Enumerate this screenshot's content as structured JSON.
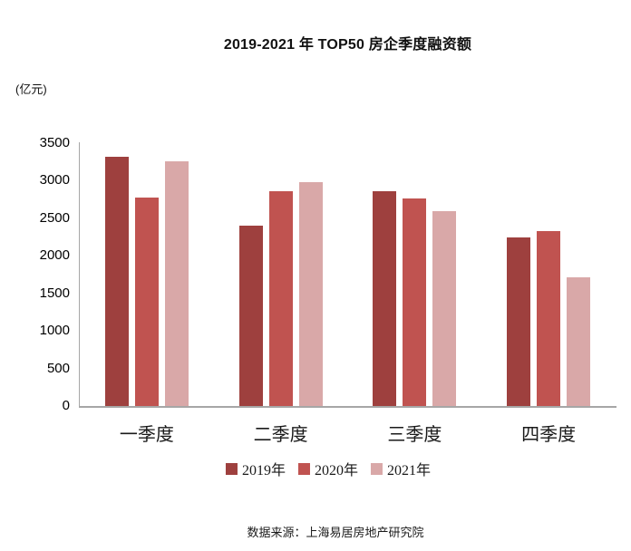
{
  "header": {
    "title": "2019-2021 年 TOP50 房企季度融资额",
    "unit_label": "(亿元)"
  },
  "footer": {
    "source": "数据来源：上海易居房地产研究院"
  },
  "chart_data": {
    "type": "bar",
    "title": "2019-2021 年 TOP50 房企季度融资额",
    "unit": "亿元",
    "categories": [
      "一季度",
      "二季度",
      "三季度",
      "四季度"
    ],
    "series": [
      {
        "name": "2019年",
        "color": "#9E403E",
        "values": [
          3320,
          2400,
          2860,
          2250
        ]
      },
      {
        "name": "2020年",
        "color": "#C05350",
        "values": [
          2780,
          2860,
          2760,
          2330
        ]
      },
      {
        "name": "2021年",
        "color": "#D9A8A8",
        "values": [
          3260,
          2980,
          2600,
          1720
        ]
      }
    ],
    "ylim": [
      0,
      3500
    ],
    "y_ticks": [
      0,
      500,
      1000,
      1500,
      2000,
      2500,
      3000,
      3500
    ],
    "grid": false,
    "legend_position": "bottom",
    "axis_color": "#A6A6A6",
    "source": "数据来源：上海易居房地产研究院"
  }
}
